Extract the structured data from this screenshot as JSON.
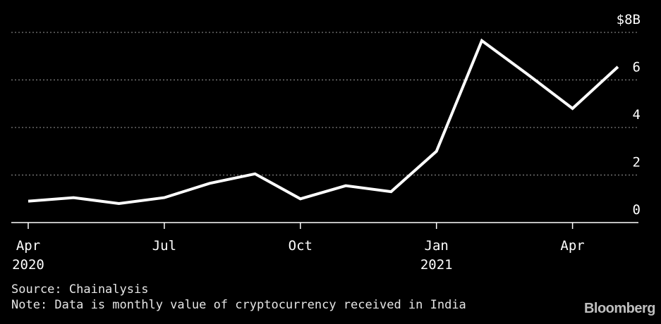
{
  "chart_data": {
    "type": "line",
    "x": [
      "2020-04",
      "2020-05",
      "2020-06",
      "2020-07",
      "2020-08",
      "2020-09",
      "2020-10",
      "2020-11",
      "2020-12",
      "2021-01",
      "2021-02",
      "2021-03",
      "2021-04",
      "2021-05"
    ],
    "series": [
      {
        "values": [
          0.9,
          1.05,
          0.8,
          1.05,
          1.65,
          2.05,
          1.0,
          1.55,
          1.3,
          3.0,
          7.65,
          6.25,
          4.8,
          6.55
        ]
      }
    ],
    "ylim": [
      0,
      8
    ],
    "y_ticks": [
      "0",
      "2",
      "4",
      "6",
      "$8B"
    ],
    "x_ticks": [
      {
        "label": "Apr",
        "year": "2020",
        "index": 0
      },
      {
        "label": "Jul",
        "year": "",
        "index": 3
      },
      {
        "label": "Oct",
        "year": "",
        "index": 6
      },
      {
        "label": "Jan",
        "year": "2021",
        "index": 9
      },
      {
        "label": "Apr",
        "year": "",
        "index": 12
      }
    ],
    "grid": "horizontal dotted",
    "line_color": "#ffffff",
    "background": "#000000"
  },
  "footer": {
    "source": "Source: Chainalysis",
    "note": "Note: Data is monthly value of cryptocurrency received in India",
    "brand": "Bloomberg"
  }
}
